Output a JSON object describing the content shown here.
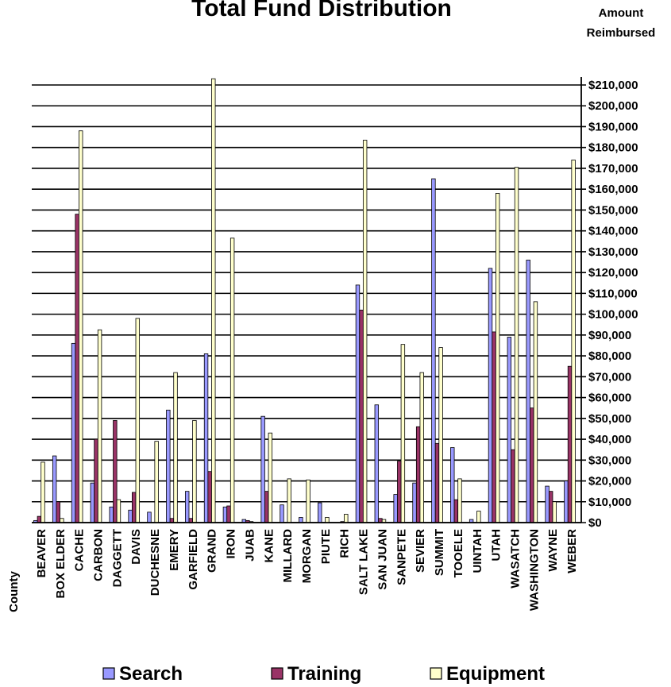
{
  "chart_data": {
    "type": "bar",
    "title": "Total Fund Distribution",
    "ylabel": "Amount Reimbursed",
    "ylabel_lines": [
      "Amount",
      "Reimbursed"
    ],
    "xlabel": "County",
    "ylim": [
      0,
      210000
    ],
    "yticks": [
      "$0",
      "$10,000",
      "$20,000",
      "$30,000",
      "$40,000",
      "$50,000",
      "$60,000",
      "$70,000",
      "$80,000",
      "$90,000",
      "$100,000",
      "$110,000",
      "$120,000",
      "$130,000",
      "$140,000",
      "$150,000",
      "$160,000",
      "$170,000",
      "$180,000",
      "$190,000",
      "$200,000",
      "$210,000"
    ],
    "grid": true,
    "legend_position": "bottom",
    "categories": [
      "BEAVER",
      "BOX ELDER",
      "CACHE",
      "CARBON",
      "DAGGETT",
      "DAVIS",
      "DUCHESNE",
      "EMERY",
      "GARFIELD",
      "GRAND",
      "IRON",
      "JUAB",
      "KANE",
      "MILLARD",
      "MORGAN",
      "PIUTE",
      "RICH",
      "SALT LAKE",
      "SAN JUAN",
      "SANPETE",
      "SEVIER",
      "SUMMIT",
      "TOOELE",
      "UINTAH",
      "UTAH",
      "WASATCH",
      "WASHINGTON",
      "WAYNE",
      "WEBER"
    ],
    "series": [
      {
        "name": "Search",
        "color": "#9999ff",
        "values": [
          1000,
          32000,
          86000,
          19000,
          7500,
          6000,
          5000,
          54000,
          15000,
          81000,
          7500,
          1500,
          51000,
          8500,
          2500,
          9500,
          0,
          114000,
          56500,
          13500,
          19000,
          165000,
          36000,
          1500,
          122000,
          89000,
          126000,
          17500,
          20000
        ]
      },
      {
        "name": "Training",
        "color": "#993366",
        "values": [
          3000,
          10000,
          148000,
          40000,
          49000,
          14500,
          0,
          2000,
          2000,
          24500,
          8000,
          1000,
          15000,
          0,
          0,
          0,
          500,
          102000,
          2000,
          29500,
          46000,
          38000,
          11000,
          0,
          91500,
          35000,
          55000,
          15000,
          75000
        ]
      },
      {
        "name": "Equipment",
        "color": "#ffffcc",
        "values": [
          29000,
          2000,
          188000,
          92500,
          11000,
          98000,
          39000,
          72000,
          49000,
          213000,
          136500,
          500,
          43000,
          21000,
          20500,
          2500,
          4000,
          183500,
          1500,
          85500,
          72000,
          84000,
          21000,
          5500,
          158000,
          170500,
          106000,
          10000,
          174000
        ]
      }
    ]
  }
}
